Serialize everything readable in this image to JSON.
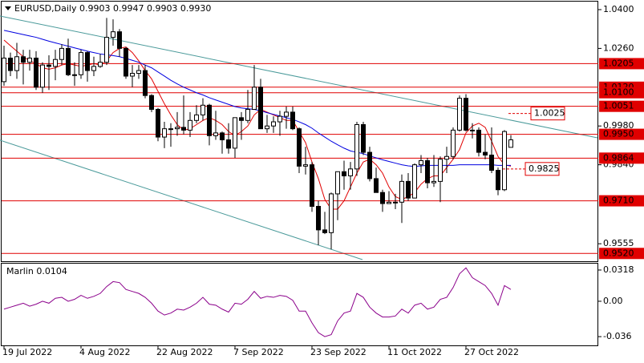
{
  "chart_data": {
    "type": "candlestick",
    "title": "EURUSD,Daily  0.9903 0.9947 0.9903 0.9930",
    "categories": [
      "19 Jul 2022",
      null,
      null,
      null,
      null,
      null,
      null,
      null,
      null,
      null,
      null,
      null,
      "4 Aug 2022",
      null,
      null,
      null,
      null,
      null,
      null,
      null,
      null,
      null,
      null,
      null,
      "22 Aug 2022",
      null,
      null,
      null,
      null,
      null,
      null,
      null,
      null,
      null,
      null,
      null,
      "7 Sep 2022",
      null,
      null,
      null,
      null,
      null,
      null,
      null,
      null,
      null,
      null,
      null,
      "23 Sep 2022",
      null,
      null,
      null,
      null,
      null,
      null,
      null,
      null,
      null,
      null,
      null,
      "11 Oct 2022",
      null,
      null,
      null,
      null,
      null,
      null,
      null,
      null,
      null,
      null,
      null,
      "27 Oct 2022",
      null,
      null,
      null,
      null,
      null,
      null,
      null
    ],
    "open": [
      1.014,
      1.0225,
      1.018,
      1.023,
      1.021,
      1.0225,
      1.012,
      1.02,
      1.0195,
      1.022,
      1.026,
      1.0165,
      1.0165,
      1.0245,
      1.018,
      1.0195,
      1.021,
      1.03,
      1.032,
      1.026,
      1.016,
      1.017,
      1.018,
      1.009,
      1.004,
      0.994,
      0.997,
      0.997,
      0.9975,
      0.9965,
      1.0,
      1.002,
      1.0055,
      0.9945,
      0.9955,
      0.993,
      0.99,
      1.001,
      1.0,
      1.004,
      1.012,
      0.997,
      0.998,
      0.9995,
      1.0015,
      1.003,
      0.997,
      0.9835,
      0.984,
      0.969,
      0.9605,
      0.9595,
      0.9735,
      0.9815,
      0.98,
      0.9825,
      0.9985,
      0.9885,
      0.979,
      0.974,
      0.97,
      0.9705,
      0.9705,
      0.978,
      0.972,
      0.984,
      0.9855,
      0.9775,
      0.978,
      0.986,
      0.987,
      0.9965,
      1.008,
      0.9965,
      0.9965,
      0.9885,
      0.9875,
      0.982,
      0.975,
      0.9903
    ],
    "high": [
      1.027,
      1.0245,
      1.028,
      1.0255,
      1.0255,
      1.025,
      1.021,
      1.0235,
      1.0255,
      1.0275,
      1.0295,
      1.021,
      1.0255,
      1.025,
      1.023,
      1.024,
      1.037,
      1.0365,
      1.033,
      1.0265,
      1.02,
      1.02,
      1.02,
      1.0095,
      1.0045,
      0.9995,
      0.999,
      1.003,
      1.009,
      1.003,
      1.0055,
      1.008,
      1.006,
      1.0035,
      0.996,
      0.999,
      1.001,
      1.003,
      1.011,
      1.02,
      1.015,
      1.002,
      1.0015,
      1.0035,
      1.005,
      1.005,
      0.9975,
      0.9905,
      0.985,
      0.971,
      0.967,
      0.974,
      0.9815,
      0.9855,
      0.985,
      0.9995,
      0.9995,
      0.9905,
      0.983,
      0.975,
      0.9745,
      0.9735,
      0.9805,
      0.981,
      0.9845,
      0.9875,
      0.9865,
      0.9875,
      0.987,
      0.9905,
      0.9975,
      1.009,
      1.0095,
      0.999,
      0.9975,
      0.995,
      0.9975,
      0.983,
      0.9965,
      0.9947
    ],
    "low": [
      1.0125,
      1.016,
      1.015,
      1.013,
      1.018,
      1.011,
      1.01,
      1.011,
      1.0145,
      1.02,
      1.016,
      1.0125,
      1.015,
      1.014,
      1.016,
      1.019,
      1.02,
      1.027,
      1.023,
      1.015,
      1.012,
      1.015,
      1.008,
      1.003,
      0.9925,
      0.99,
      0.9905,
      0.9945,
      0.995,
      0.994,
      0.999,
      1.0,
      0.991,
      0.993,
      0.988,
      0.988,
      0.9865,
      0.993,
      0.999,
      1.004,
      0.997,
      0.9955,
      0.9955,
      0.9945,
      0.997,
      0.9965,
      0.981,
      0.9805,
      0.967,
      0.955,
      0.959,
      0.9535,
      0.964,
      0.975,
      0.975,
      0.98,
      0.9875,
      0.978,
      0.974,
      0.967,
      0.97,
      0.968,
      0.963,
      0.971,
      0.972,
      0.981,
      0.9755,
      0.976,
      0.9705,
      0.981,
      0.986,
      0.996,
      0.996,
      0.9935,
      0.987,
      0.986,
      0.981,
      0.973,
      0.9745,
      0.9903
    ],
    "close": [
      1.0225,
      1.018,
      1.023,
      1.021,
      1.0225,
      1.012,
      1.02,
      1.0195,
      1.022,
      1.026,
      1.0165,
      1.0165,
      1.0245,
      1.018,
      1.0195,
      1.021,
      1.03,
      1.032,
      1.026,
      1.016,
      1.017,
      1.018,
      1.009,
      1.004,
      0.994,
      0.997,
      0.997,
      0.9975,
      0.9965,
      1.0,
      1.002,
      1.0055,
      0.9945,
      0.9955,
      0.993,
      0.99,
      1.001,
      1.0,
      1.004,
      1.012,
      0.997,
      0.998,
      0.9995,
      1.0015,
      1.003,
      0.997,
      0.9835,
      0.984,
      0.969,
      0.9605,
      0.9595,
      0.9735,
      0.9815,
      0.98,
      0.9825,
      0.9985,
      0.9885,
      0.979,
      0.974,
      0.97,
      0.9705,
      0.9705,
      0.978,
      0.972,
      0.984,
      0.9855,
      0.9775,
      0.978,
      0.986,
      0.987,
      0.9965,
      1.008,
      0.9965,
      0.9965,
      0.9885,
      0.9875,
      0.982,
      0.975,
      0.996,
      0.993
    ],
    "lines": [
      {
        "color": "#e00000",
        "values": [
          1.029,
          1.027,
          1.025,
          1.023,
          1.0215,
          1.0205,
          1.019,
          1.0185,
          1.019,
          1.02,
          1.0205,
          1.02,
          1.0195,
          1.02,
          1.0205,
          1.02,
          1.0215,
          1.0245,
          1.026,
          1.0265,
          1.0245,
          1.0215,
          1.018,
          1.015,
          1.0105,
          1.006,
          1.002,
          0.9985,
          0.9965,
          0.997,
          0.9985,
          1.0,
          1.001,
          1.0,
          0.9985,
          0.996,
          0.9945,
          0.996,
          0.998,
          1.002,
          1.004,
          1.003,
          1.002,
          1.001,
          1.0,
          1.0,
          0.996,
          0.992,
          0.985,
          0.979,
          0.9715,
          0.968,
          0.968,
          0.971,
          0.976,
          0.981,
          0.985,
          0.986,
          0.984,
          0.981,
          0.976,
          0.9725,
          0.9715,
          0.9725,
          0.974,
          0.977,
          0.979,
          0.98,
          0.98,
          0.983,
          0.986,
          0.9895,
          0.9955,
          0.998,
          0.999,
          0.9975,
          0.9925,
          0.987,
          0.984,
          0.9835
        ]
      },
      {
        "color": "#0000e0",
        "values": [
          1.0325,
          1.032,
          1.0315,
          1.031,
          1.0305,
          1.03,
          1.0293,
          1.0286,
          1.028,
          1.0274,
          1.0268,
          1.0262,
          1.0256,
          1.025,
          1.0245,
          1.024,
          1.0237,
          1.0234,
          1.023,
          1.0224,
          1.0217,
          1.021,
          1.02,
          1.019,
          1.0175,
          1.016,
          1.0145,
          1.0132,
          1.012,
          1.011,
          1.01,
          1.0092,
          1.0082,
          1.0074,
          1.0066,
          1.0058,
          1.005,
          1.0045,
          1.0042,
          1.004,
          1.0035,
          1.0028,
          1.0022,
          1.0016,
          1.001,
          1.0004,
          0.9995,
          0.9985,
          0.9972,
          0.9955,
          0.994,
          0.9925,
          0.9912,
          0.99,
          0.989,
          0.9885,
          0.988,
          0.9872,
          0.9865,
          0.9858,
          0.9852,
          0.9846,
          0.984,
          0.9836,
          0.9834,
          0.9836,
          0.9838,
          0.9838,
          0.9838,
          0.9838,
          0.9838,
          0.984,
          0.984,
          0.984,
          0.984,
          0.984,
          0.984,
          0.9838,
          0.9838,
          0.9838
        ]
      }
    ],
    "levels": [
      {
        "value": 1.0205,
        "label": "1.0205"
      },
      {
        "value": 1.012,
        "label": "1.0120"
      },
      {
        "value": 1.01,
        "label": "1.0100"
      },
      {
        "value": 1.0051,
        "label": "1.0051"
      },
      {
        "value": 0.995,
        "label": "0.9950"
      },
      {
        "value": 0.9864,
        "label": "0.9864"
      },
      {
        "value": 0.971,
        "label": "0.9710"
      },
      {
        "value": 0.952,
        "label": "0.9520"
      }
    ],
    "annotations": [
      {
        "value": 1.0025,
        "label": "1.0025"
      },
      {
        "value": 0.9825,
        "label": "0.9825"
      }
    ],
    "ylim": [
      0.9489,
      1.0426
    ],
    "yticks": [
      {
        "value": 1.04,
        "label": "1.0400"
      },
      {
        "value": 1.026,
        "label": "1.0260"
      },
      {
        "value": 0.998,
        "label": "0.9980"
      },
      {
        "value": 0.984,
        "label": "0.9840"
      },
      {
        "value": 0.9555,
        "label": "0.9555"
      }
    ],
    "indicator": {
      "title": "Marlin 0.0104",
      "color": "#8b008b",
      "ylim": [
        -0.0449,
        0.0383
      ],
      "yticks": [
        {
          "value": 0.0318,
          "label": "0.0318"
        },
        {
          "value": 0,
          "label": "0.00"
        },
        {
          "value": -0.036,
          "label": "-0.036"
        }
      ],
      "values": [
        -0.008,
        -0.006,
        -0.004,
        -0.002,
        -0.005,
        -0.003,
        0.0,
        -0.002,
        0.003,
        0.004,
        0.0,
        0.002,
        0.006,
        0.003,
        0.005,
        0.008,
        0.015,
        0.02,
        0.019,
        0.012,
        0.01,
        0.008,
        0.004,
        -0.002,
        -0.01,
        -0.014,
        -0.012,
        -0.008,
        -0.009,
        -0.006,
        -0.002,
        0.004,
        -0.003,
        -0.004,
        -0.008,
        -0.011,
        -0.002,
        -0.003,
        0.002,
        0.01,
        0.003,
        0.005,
        0.004,
        0.006,
        0.005,
        0.001,
        -0.01,
        -0.01,
        -0.022,
        -0.032,
        -0.036,
        -0.034,
        -0.02,
        -0.012,
        -0.01,
        0.008,
        0.004,
        -0.006,
        -0.012,
        -0.016,
        -0.016,
        -0.015,
        -0.008,
        -0.012,
        -0.004,
        -0.002,
        -0.008,
        -0.006,
        0.002,
        0.004,
        0.014,
        0.028,
        0.034,
        0.024,
        0.02,
        0.016,
        0.008,
        -0.004,
        0.016,
        0.012
      ]
    }
  }
}
